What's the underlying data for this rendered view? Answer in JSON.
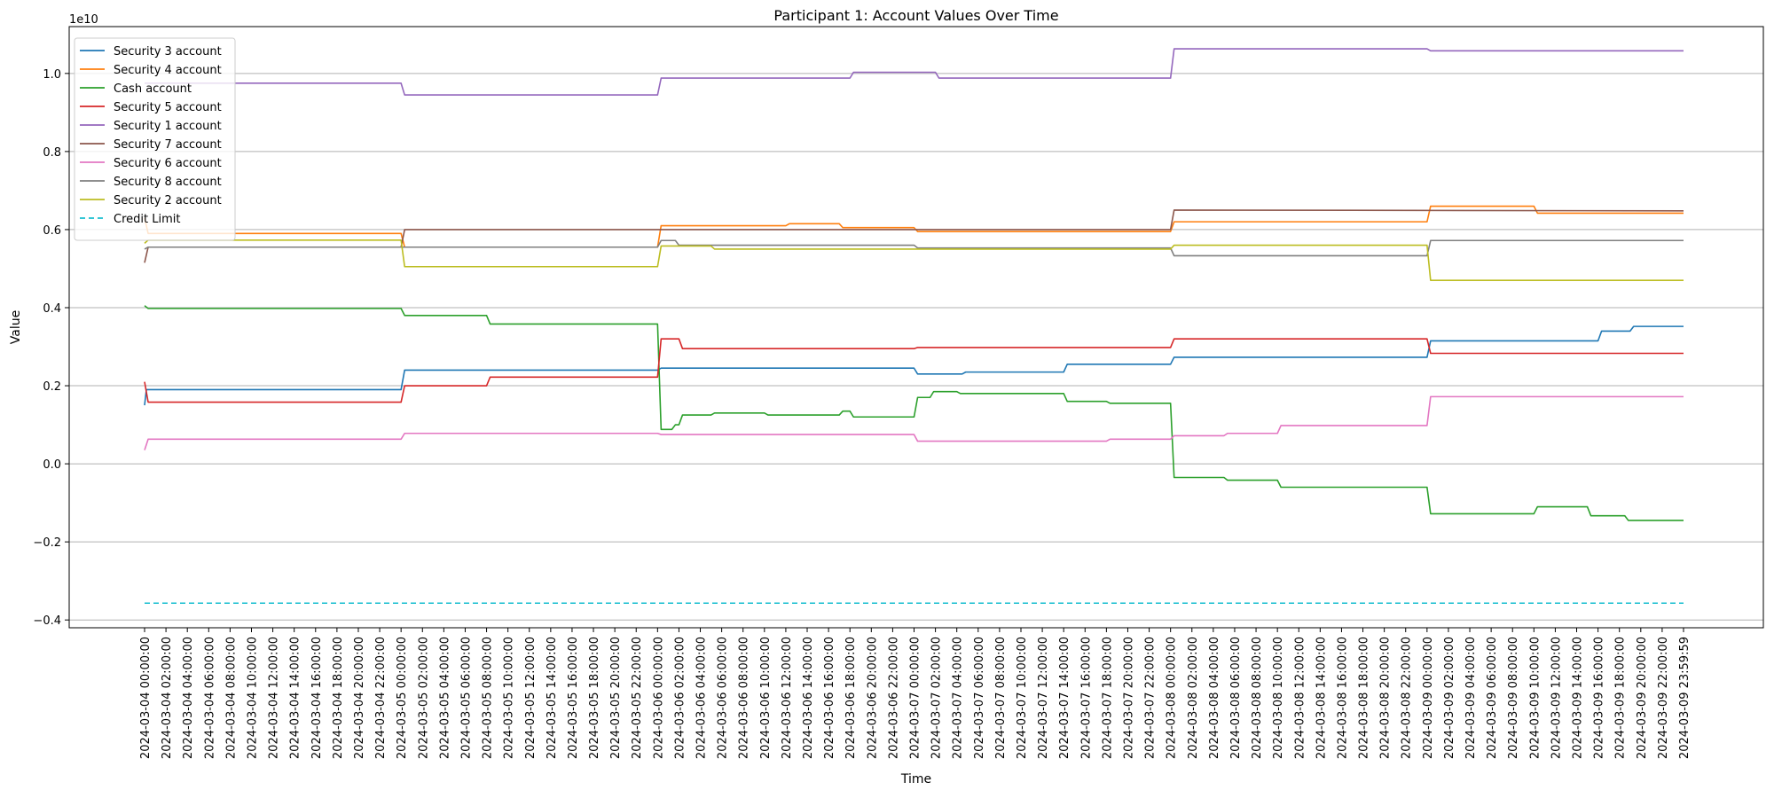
{
  "chart_data": {
    "type": "line",
    "title": "Participant 1: Account Values Over Time",
    "xlabel": "Time",
    "ylabel": "Value",
    "y_offset_text": "1e10",
    "y_scale_factor": 10000000000,
    "ylim": [
      -0.42,
      1.12
    ],
    "grid": "horizontal",
    "legend_position": "top-left",
    "x_range": [
      "2024-03-04 00:00:00",
      "2024-03-09 23:59:59"
    ],
    "y_ticks": [
      {
        "value": -0.4,
        "label": "−0.4"
      },
      {
        "value": -0.2,
        "label": "−0.2"
      },
      {
        "value": 0.0,
        "label": "0.0"
      },
      {
        "value": 0.2,
        "label": "0.2"
      },
      {
        "value": 0.4,
        "label": "0.4"
      },
      {
        "value": 0.6,
        "label": "0.6"
      },
      {
        "value": 0.8,
        "label": "0.8"
      },
      {
        "value": 1.0,
        "label": "1.0"
      }
    ],
    "x_ticks": [
      "2024-03-04 00:00:00",
      "2024-03-04 02:00:00",
      "2024-03-04 04:00:00",
      "2024-03-04 06:00:00",
      "2024-03-04 08:00:00",
      "2024-03-04 10:00:00",
      "2024-03-04 12:00:00",
      "2024-03-04 14:00:00",
      "2024-03-04 16:00:00",
      "2024-03-04 18:00:00",
      "2024-03-04 20:00:00",
      "2024-03-04 22:00:00",
      "2024-03-05 00:00:00",
      "2024-03-05 02:00:00",
      "2024-03-05 04:00:00",
      "2024-03-05 06:00:00",
      "2024-03-05 08:00:00",
      "2024-03-05 10:00:00",
      "2024-03-05 12:00:00",
      "2024-03-05 14:00:00",
      "2024-03-05 16:00:00",
      "2024-03-05 18:00:00",
      "2024-03-05 20:00:00",
      "2024-03-05 22:00:00",
      "2024-03-06 00:00:00",
      "2024-03-06 02:00:00",
      "2024-03-06 04:00:00",
      "2024-03-06 06:00:00",
      "2024-03-06 08:00:00",
      "2024-03-06 10:00:00",
      "2024-03-06 12:00:00",
      "2024-03-06 14:00:00",
      "2024-03-06 16:00:00",
      "2024-03-06 18:00:00",
      "2024-03-06 20:00:00",
      "2024-03-06 22:00:00",
      "2024-03-07 00:00:00",
      "2024-03-07 02:00:00",
      "2024-03-07 04:00:00",
      "2024-03-07 06:00:00",
      "2024-03-07 08:00:00",
      "2024-03-07 10:00:00",
      "2024-03-07 12:00:00",
      "2024-03-07 14:00:00",
      "2024-03-07 16:00:00",
      "2024-03-07 18:00:00",
      "2024-03-07 20:00:00",
      "2024-03-07 22:00:00",
      "2024-03-08 00:00:00",
      "2024-03-08 02:00:00",
      "2024-03-08 04:00:00",
      "2024-03-08 06:00:00",
      "2024-03-08 08:00:00",
      "2024-03-08 10:00:00",
      "2024-03-08 12:00:00",
      "2024-03-08 14:00:00",
      "2024-03-08 16:00:00",
      "2024-03-08 18:00:00",
      "2024-03-08 20:00:00",
      "2024-03-08 22:00:00",
      "2024-03-09 00:00:00",
      "2024-03-09 02:00:00",
      "2024-03-09 04:00:00",
      "2024-03-09 06:00:00",
      "2024-03-09 08:00:00",
      "2024-03-09 10:00:00",
      "2024-03-09 12:00:00",
      "2024-03-09 14:00:00",
      "2024-03-09 16:00:00",
      "2024-03-09 18:00:00",
      "2024-03-09 20:00:00",
      "2024-03-09 22:00:00",
      "2024-03-09 23:59:59"
    ],
    "series": [
      {
        "name": "Security 3 account",
        "color": "#1f77b4",
        "style": "solid",
        "points": [
          [
            "2024-03-04 00:00:00",
            0.15
          ],
          [
            "2024-03-04 00:10:00",
            0.19
          ],
          [
            "2024-03-05 00:00:00",
            0.19
          ],
          [
            "2024-03-05 00:20:00",
            0.24
          ],
          [
            "2024-03-06 00:00:00",
            0.24
          ],
          [
            "2024-03-06 00:20:00",
            0.245
          ],
          [
            "2024-03-07 00:00:00",
            0.245
          ],
          [
            "2024-03-07 00:20:00",
            0.23
          ],
          [
            "2024-03-07 04:30:00",
            0.23
          ],
          [
            "2024-03-07 04:50:00",
            0.235
          ],
          [
            "2024-03-07 14:00:00",
            0.235
          ],
          [
            "2024-03-07 14:20:00",
            0.255
          ],
          [
            "2024-03-08 00:00:00",
            0.255
          ],
          [
            "2024-03-08 00:20:00",
            0.273
          ],
          [
            "2024-03-09 00:00:00",
            0.273
          ],
          [
            "2024-03-09 00:20:00",
            0.315
          ],
          [
            "2024-03-09 16:00:00",
            0.315
          ],
          [
            "2024-03-09 16:20:00",
            0.34
          ],
          [
            "2024-03-09 19:00:00",
            0.34
          ],
          [
            "2024-03-09 19:20:00",
            0.352
          ],
          [
            "2024-03-09 23:59:59",
            0.352
          ]
        ]
      },
      {
        "name": "Security 4 account",
        "color": "#ff7f0e",
        "style": "solid",
        "points": [
          [
            "2024-03-04 00:00:00",
            0.63
          ],
          [
            "2024-03-04 00:20:00",
            0.59
          ],
          [
            "2024-03-05 00:00:00",
            0.59
          ],
          [
            "2024-03-05 00:20:00",
            0.555
          ],
          [
            "2024-03-06 00:00:00",
            0.555
          ],
          [
            "2024-03-06 00:20:00",
            0.61
          ],
          [
            "2024-03-06 12:00:00",
            0.61
          ],
          [
            "2024-03-06 12:20:00",
            0.615
          ],
          [
            "2024-03-06 17:00:00",
            0.615
          ],
          [
            "2024-03-06 17:20:00",
            0.605
          ],
          [
            "2024-03-07 00:00:00",
            0.605
          ],
          [
            "2024-03-07 00:20:00",
            0.595
          ],
          [
            "2024-03-08 00:00:00",
            0.595
          ],
          [
            "2024-03-08 00:20:00",
            0.62
          ],
          [
            "2024-03-09 00:00:00",
            0.62
          ],
          [
            "2024-03-09 00:20:00",
            0.66
          ],
          [
            "2024-03-09 10:00:00",
            0.66
          ],
          [
            "2024-03-09 10:20:00",
            0.642
          ],
          [
            "2024-03-09 23:59:59",
            0.642
          ]
        ]
      },
      {
        "name": "Cash account",
        "color": "#2ca02c",
        "style": "solid",
        "points": [
          [
            "2024-03-04 00:00:00",
            0.405
          ],
          [
            "2024-03-04 00:20:00",
            0.398
          ],
          [
            "2024-03-05 00:00:00",
            0.398
          ],
          [
            "2024-03-05 00:20:00",
            0.38
          ],
          [
            "2024-03-05 08:00:00",
            0.38
          ],
          [
            "2024-03-05 08:20:00",
            0.358
          ],
          [
            "2024-03-06 00:00:00",
            0.358
          ],
          [
            "2024-03-06 00:20:00",
            0.088
          ],
          [
            "2024-03-06 01:20:00",
            0.088
          ],
          [
            "2024-03-06 01:40:00",
            0.1
          ],
          [
            "2024-03-06 02:00:00",
            0.1
          ],
          [
            "2024-03-06 02:20:00",
            0.125
          ],
          [
            "2024-03-06 05:00:00",
            0.125
          ],
          [
            "2024-03-06 05:20:00",
            0.13
          ],
          [
            "2024-03-06 10:00:00",
            0.13
          ],
          [
            "2024-03-06 10:20:00",
            0.125
          ],
          [
            "2024-03-06 17:00:00",
            0.125
          ],
          [
            "2024-03-06 17:20:00",
            0.135
          ],
          [
            "2024-03-06 18:00:00",
            0.135
          ],
          [
            "2024-03-06 18:20:00",
            0.12
          ],
          [
            "2024-03-07 00:00:00",
            0.12
          ],
          [
            "2024-03-07 00:20:00",
            0.17
          ],
          [
            "2024-03-07 01:30:00",
            0.17
          ],
          [
            "2024-03-07 01:50:00",
            0.185
          ],
          [
            "2024-03-07 04:00:00",
            0.185
          ],
          [
            "2024-03-07 04:20:00",
            0.18
          ],
          [
            "2024-03-07 14:00:00",
            0.18
          ],
          [
            "2024-03-07 14:20:00",
            0.16
          ],
          [
            "2024-03-07 18:00:00",
            0.16
          ],
          [
            "2024-03-07 18:20:00",
            0.155
          ],
          [
            "2024-03-08 00:00:00",
            0.155
          ],
          [
            "2024-03-08 00:20:00",
            -0.035
          ],
          [
            "2024-03-08 05:00:00",
            -0.035
          ],
          [
            "2024-03-08 05:20:00",
            -0.042
          ],
          [
            "2024-03-08 10:00:00",
            -0.042
          ],
          [
            "2024-03-08 10:20:00",
            -0.06
          ],
          [
            "2024-03-09 00:00:00",
            -0.06
          ],
          [
            "2024-03-09 00:20:00",
            -0.128
          ],
          [
            "2024-03-09 10:00:00",
            -0.128
          ],
          [
            "2024-03-09 10:20:00",
            -0.11
          ],
          [
            "2024-03-09 15:00:00",
            -0.11
          ],
          [
            "2024-03-09 15:20:00",
            -0.133
          ],
          [
            "2024-03-09 18:30:00",
            -0.133
          ],
          [
            "2024-03-09 18:50:00",
            -0.145
          ],
          [
            "2024-03-09 23:59:59",
            -0.145
          ]
        ]
      },
      {
        "name": "Security 5 account",
        "color": "#d62728",
        "style": "solid",
        "points": [
          [
            "2024-03-04 00:00:00",
            0.21
          ],
          [
            "2024-03-04 00:20:00",
            0.158
          ],
          [
            "2024-03-05 00:00:00",
            0.158
          ],
          [
            "2024-03-05 00:20:00",
            0.2
          ],
          [
            "2024-03-05 08:00:00",
            0.2
          ],
          [
            "2024-03-05 08:20:00",
            0.222
          ],
          [
            "2024-03-06 00:00:00",
            0.222
          ],
          [
            "2024-03-06 00:20:00",
            0.32
          ],
          [
            "2024-03-06 02:00:00",
            0.32
          ],
          [
            "2024-03-06 02:20:00",
            0.295
          ],
          [
            "2024-03-07 00:00:00",
            0.295
          ],
          [
            "2024-03-07 00:20:00",
            0.298
          ],
          [
            "2024-03-08 00:00:00",
            0.298
          ],
          [
            "2024-03-08 00:20:00",
            0.32
          ],
          [
            "2024-03-09 00:00:00",
            0.32
          ],
          [
            "2024-03-09 00:20:00",
            0.283
          ],
          [
            "2024-03-09 23:59:59",
            0.283
          ]
        ]
      },
      {
        "name": "Security 1 account",
        "color": "#9467bd",
        "style": "solid",
        "points": [
          [
            "2024-03-04 00:00:00",
            0.975
          ],
          [
            "2024-03-05 00:00:00",
            0.975
          ],
          [
            "2024-03-05 00:20:00",
            0.945
          ],
          [
            "2024-03-06 00:00:00",
            0.945
          ],
          [
            "2024-03-06 00:20:00",
            0.988
          ],
          [
            "2024-03-06 18:00:00",
            0.988
          ],
          [
            "2024-03-06 18:20:00",
            1.003
          ],
          [
            "2024-03-07 02:00:00",
            1.003
          ],
          [
            "2024-03-07 02:20:00",
            0.988
          ],
          [
            "2024-03-08 00:00:00",
            0.988
          ],
          [
            "2024-03-08 00:20:00",
            1.063
          ],
          [
            "2024-03-09 00:00:00",
            1.063
          ],
          [
            "2024-03-09 00:20:00",
            1.058
          ],
          [
            "2024-03-09 23:59:59",
            1.058
          ]
        ]
      },
      {
        "name": "Security 7 account",
        "color": "#8c564b",
        "style": "solid",
        "points": [
          [
            "2024-03-04 00:00:00",
            0.515
          ],
          [
            "2024-03-04 00:20:00",
            0.555
          ],
          [
            "2024-03-05 00:00:00",
            0.555
          ],
          [
            "2024-03-05 00:20:00",
            0.6
          ],
          [
            "2024-03-08 00:00:00",
            0.6
          ],
          [
            "2024-03-08 00:20:00",
            0.65
          ],
          [
            "2024-03-09 23:59:59",
            0.648
          ]
        ]
      },
      {
        "name": "Security 6 account",
        "color": "#e377c2",
        "style": "solid",
        "points": [
          [
            "2024-03-04 00:00:00",
            0.035
          ],
          [
            "2024-03-04 00:20:00",
            0.063
          ],
          [
            "2024-03-05 00:00:00",
            0.063
          ],
          [
            "2024-03-05 00:20:00",
            0.078
          ],
          [
            "2024-03-06 00:00:00",
            0.078
          ],
          [
            "2024-03-06 00:20:00",
            0.075
          ],
          [
            "2024-03-07 00:00:00",
            0.075
          ],
          [
            "2024-03-07 00:20:00",
            0.058
          ],
          [
            "2024-03-07 18:00:00",
            0.058
          ],
          [
            "2024-03-07 18:20:00",
            0.063
          ],
          [
            "2024-03-08 00:00:00",
            0.063
          ],
          [
            "2024-03-08 00:20:00",
            0.072
          ],
          [
            "2024-03-08 05:00:00",
            0.072
          ],
          [
            "2024-03-08 05:20:00",
            0.078
          ],
          [
            "2024-03-08 10:00:00",
            0.078
          ],
          [
            "2024-03-08 10:20:00",
            0.098
          ],
          [
            "2024-03-09 00:00:00",
            0.098
          ],
          [
            "2024-03-09 00:20:00",
            0.172
          ],
          [
            "2024-03-09 23:59:59",
            0.172
          ]
        ]
      },
      {
        "name": "Security 8 account",
        "color": "#7f7f7f",
        "style": "solid",
        "points": [
          [
            "2024-03-04 00:00:00",
            0.55
          ],
          [
            "2024-03-04 00:20:00",
            0.555
          ],
          [
            "2024-03-06 00:00:00",
            0.555
          ],
          [
            "2024-03-06 00:20:00",
            0.572
          ],
          [
            "2024-03-06 01:40:00",
            0.572
          ],
          [
            "2024-03-06 02:00:00",
            0.56
          ],
          [
            "2024-03-07 00:00:00",
            0.56
          ],
          [
            "2024-03-07 00:20:00",
            0.553
          ],
          [
            "2024-03-08 00:00:00",
            0.553
          ],
          [
            "2024-03-08 00:20:00",
            0.533
          ],
          [
            "2024-03-09 00:00:00",
            0.533
          ],
          [
            "2024-03-09 00:20:00",
            0.572
          ],
          [
            "2024-03-09 23:59:59",
            0.572
          ]
        ]
      },
      {
        "name": "Security 2 account",
        "color": "#bcbd22",
        "style": "solid",
        "points": [
          [
            "2024-03-04 00:00:00",
            0.565
          ],
          [
            "2024-03-04 00:20:00",
            0.573
          ],
          [
            "2024-03-05 00:00:00",
            0.573
          ],
          [
            "2024-03-05 00:20:00",
            0.505
          ],
          [
            "2024-03-06 00:00:00",
            0.505
          ],
          [
            "2024-03-06 00:20:00",
            0.558
          ],
          [
            "2024-03-06 05:00:00",
            0.558
          ],
          [
            "2024-03-06 05:20:00",
            0.55
          ],
          [
            "2024-03-07 00:00:00",
            0.55
          ],
          [
            "2024-03-07 00:20:00",
            0.55
          ],
          [
            "2024-03-08 00:00:00",
            0.55
          ],
          [
            "2024-03-08 00:20:00",
            0.56
          ],
          [
            "2024-03-09 00:00:00",
            0.56
          ],
          [
            "2024-03-09 00:20:00",
            0.47
          ],
          [
            "2024-03-09 23:59:59",
            0.47
          ]
        ]
      },
      {
        "name": "Credit Limit",
        "color": "#17becf",
        "style": "dashed",
        "points": [
          [
            "2024-03-04 00:00:00",
            -0.357
          ],
          [
            "2024-03-09 23:59:59",
            -0.357
          ]
        ]
      }
    ]
  }
}
